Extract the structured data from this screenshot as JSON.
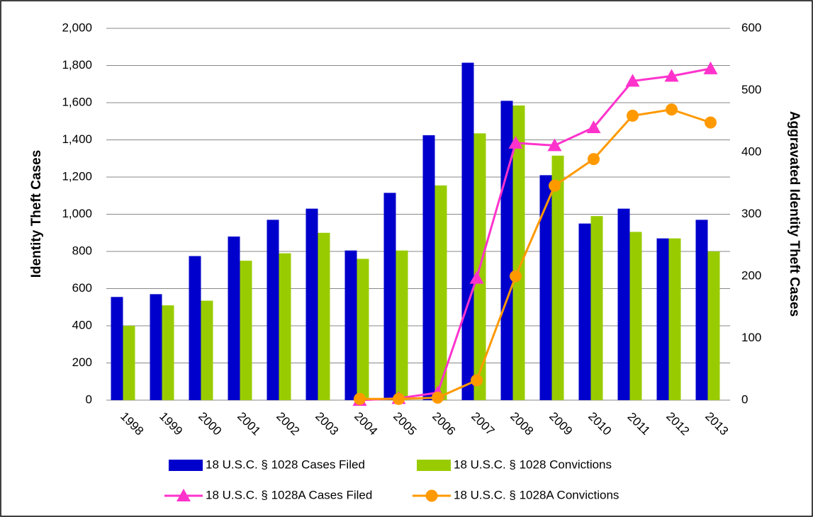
{
  "chart_data": {
    "type": "bar_line",
    "y_label": "Identity Theft Cases",
    "y2_label": "Aggravated Identity Theft Cases",
    "categories": [
      "1998",
      "1999",
      "2000",
      "2001",
      "2002",
      "2003",
      "2004",
      "2005",
      "2006",
      "2007",
      "2008",
      "2009",
      "2010",
      "2011",
      "2012",
      "2013"
    ],
    "series": [
      {
        "name": "18 U.S.C. § 1028 Cases Filed",
        "color": "#0000cc",
        "kind": "bar",
        "values": [
          555,
          570,
          775,
          880,
          970,
          1030,
          805,
          1115,
          1425,
          1815,
          1610,
          1210,
          950,
          1030,
          870,
          970
        ]
      },
      {
        "name": "18 U.S.C. § 1028 Convictions",
        "color": "#99cc00",
        "kind": "bar",
        "values": [
          400,
          510,
          535,
          750,
          790,
          900,
          760,
          805,
          1155,
          1435,
          1585,
          1315,
          990,
          905,
          870,
          800
        ]
      },
      {
        "name": "18 U.S.C. § 1028A  Cases Filed",
        "color": "#ff33cc",
        "kind": "line",
        "marker": "triangle",
        "axis": "y2",
        "values": [
          null,
          null,
          null,
          null,
          null,
          null,
          0,
          3,
          12,
          197,
          415,
          411,
          440,
          515,
          523,
          535
        ]
      },
      {
        "name": "18 U.S.C. § 1028A Convictions",
        "color": "#ff9900",
        "kind": "line",
        "marker": "circle",
        "axis": "y2",
        "values": [
          null,
          null,
          null,
          null,
          null,
          null,
          2,
          2,
          4,
          32,
          200,
          346,
          389,
          459,
          469,
          448
        ]
      }
    ],
    "ylim": [
      0,
      2000
    ],
    "yticks": [
      0,
      200,
      400,
      600,
      800,
      {
        "value": 1000,
        "label": "1,000"
      },
      {
        "value": 1200,
        "label": "1,200"
      },
      {
        "value": 1400,
        "label": "1,400"
      },
      {
        "value": 1600,
        "label": "1,600"
      },
      {
        "value": 1800,
        "label": "1,800"
      },
      {
        "value": 2000,
        "label": "2,000"
      }
    ],
    "y2lim": [
      0,
      600
    ],
    "y2ticks": [
      0,
      100,
      200,
      300,
      400,
      500,
      600
    ],
    "grid": true
  }
}
